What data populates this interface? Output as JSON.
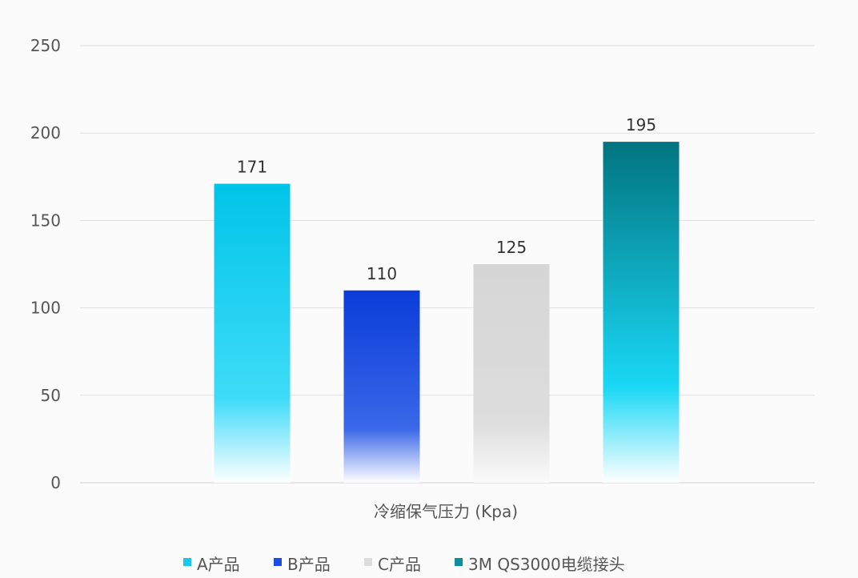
{
  "chart_data": {
    "type": "bar",
    "categories": [
      "A产品",
      "B产品",
      "C产品",
      "3M QS3000电缆接头"
    ],
    "values": [
      171,
      110,
      125,
      195
    ],
    "data_labels": [
      "171",
      "110",
      "125",
      "195"
    ],
    "xlabel": "冷缩保气压力 (Kpa)",
    "ylabel": "",
    "ylim": [
      0,
      250
    ],
    "yticks": [
      0,
      50,
      100,
      150,
      200,
      250
    ],
    "grid": true,
    "legend_position": "bottom",
    "colors": {
      "A产品": {
        "top": "#00c4e8",
        "mid": "#3fdcf8",
        "bottom": "#ffffff",
        "legend": "#17c9ee"
      },
      "B产品": {
        "top": "#0a3cd8",
        "mid": "#3a68e8",
        "bottom": "#ffffff",
        "legend": "#1c4de0"
      },
      "C产品": {
        "top": "#d6d6d6",
        "mid": "#dddddd",
        "bottom": "#fafafa",
        "legend": "#dddddd"
      },
      "3M QS3000电缆接头": {
        "top": "#027480",
        "mid": "#1ad8f5",
        "bottom": "#ffffff",
        "legend": "#0d8e9c"
      }
    }
  }
}
